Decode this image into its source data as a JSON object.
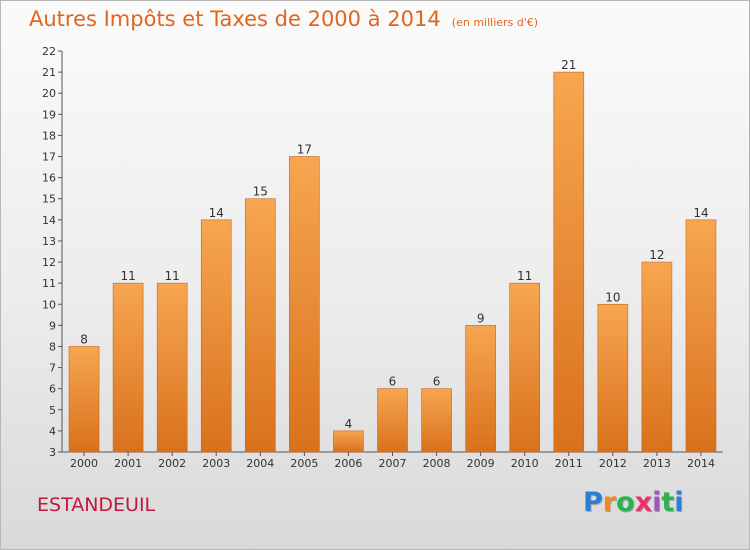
{
  "title": "Autres Impôts et Taxes de 2000 à 2014",
  "subtitle": "(en milliers d'€)",
  "commune": "ESTANDEUIL",
  "logo": {
    "letters": [
      "P",
      "r",
      "o",
      "x",
      "i",
      "t",
      "i"
    ],
    "colors": [
      "#2b7fd3",
      "#f18a1c",
      "#2bb24c",
      "#e8326a",
      "#9b59b6",
      "#2bb24c",
      "#2b7fd3"
    ]
  },
  "colors": {
    "bar_top": "#f7a651",
    "bar_bottom": "#d9711c",
    "title": "#e0661e",
    "commune": "#c2183c"
  },
  "chart_data": {
    "type": "bar",
    "title": "Autres Impôts et Taxes de 2000 à 2014",
    "subtitle": "(en milliers d'€)",
    "categories": [
      "2000",
      "2001",
      "2002",
      "2003",
      "2004",
      "2005",
      "2006",
      "2007",
      "2008",
      "2009",
      "2010",
      "2011",
      "2012",
      "2013",
      "2014"
    ],
    "values": [
      8,
      11,
      11,
      14,
      15,
      17,
      4,
      6,
      6,
      9,
      11,
      21,
      10,
      12,
      14
    ],
    "ylim": [
      3,
      22
    ],
    "yticks": [
      3,
      4,
      5,
      6,
      7,
      8,
      9,
      10,
      11,
      12,
      13,
      14,
      15,
      16,
      17,
      18,
      19,
      20,
      21,
      22
    ],
    "grid": false,
    "data_labels": true
  }
}
